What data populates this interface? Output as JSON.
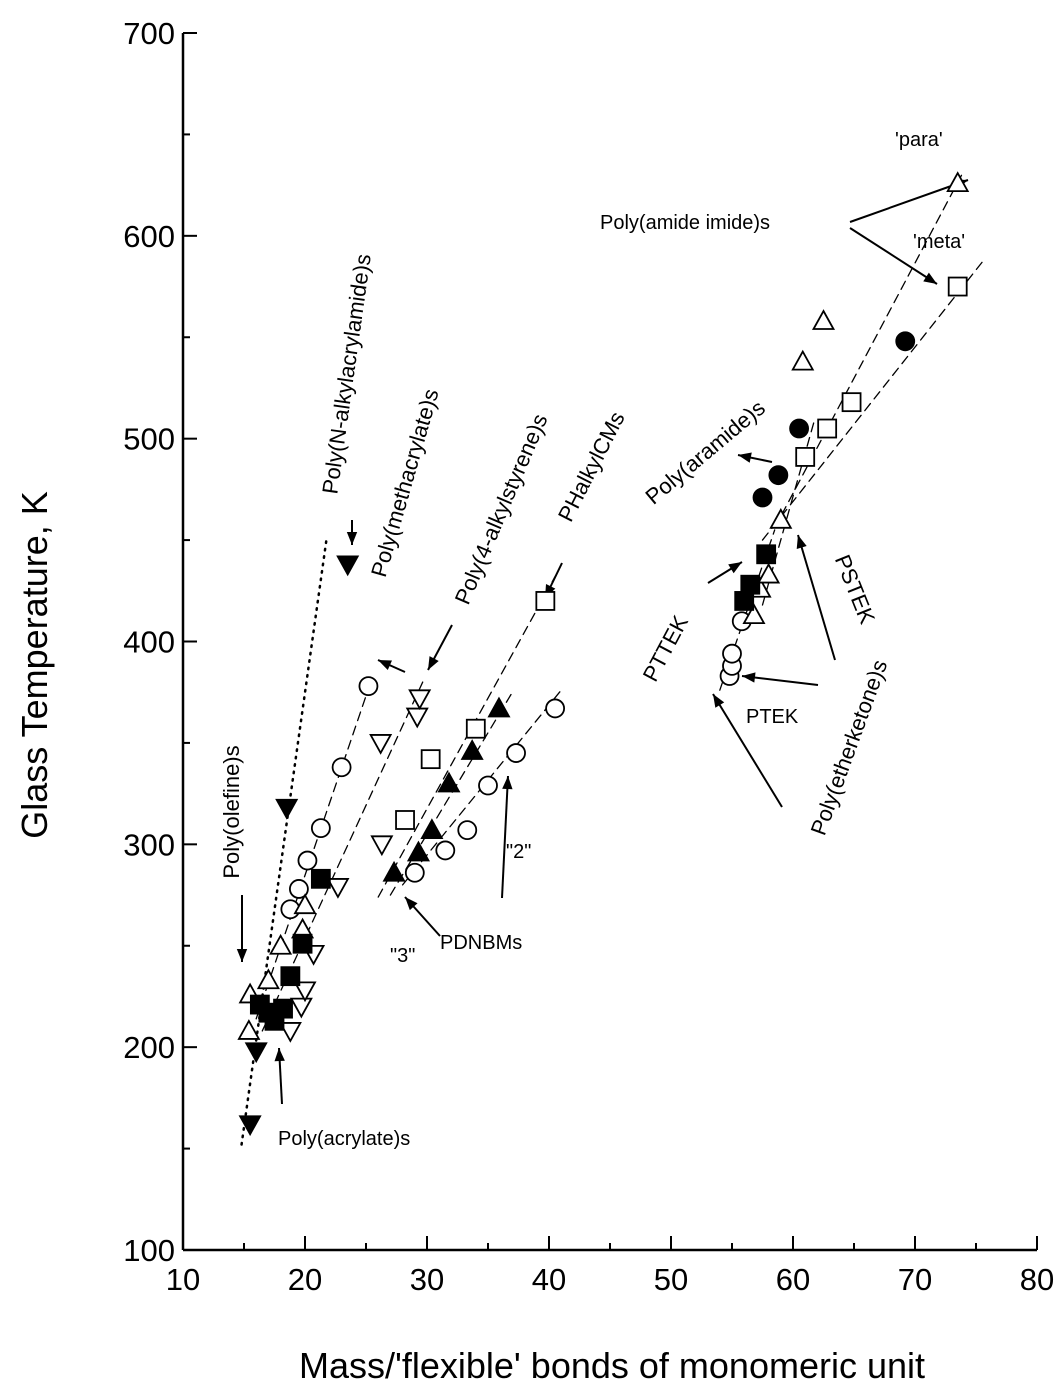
{
  "chart_data": {
    "type": "scatter",
    "title": "",
    "xlabel": "Mass/'flexible' bonds of monomeric unit",
    "ylabel": "Glass Temperature, K",
    "xlim": [
      10,
      80
    ],
    "ylim": [
      100,
      700
    ],
    "xticks": [
      10,
      20,
      30,
      40,
      50,
      60,
      70,
      80
    ],
    "yticks": [
      100,
      200,
      300,
      400,
      500,
      600,
      700
    ],
    "xtick_labels": [
      "10",
      "20",
      "30",
      "40",
      "50",
      "60",
      "70",
      "80"
    ],
    "ytick_labels": [
      "100",
      "200",
      "300",
      "400",
      "500",
      "600",
      "700"
    ],
    "grid": false,
    "legend": "none",
    "series": [
      {
        "marker": "filled-down-triangle",
        "points": [
          [
            15.5,
            162
          ],
          [
            16.0,
            198
          ],
          [
            18.5,
            318
          ],
          [
            23.5,
            438
          ]
        ]
      },
      {
        "marker": "open-circle",
        "points": [
          [
            18.8,
            268
          ],
          [
            19.5,
            278
          ],
          [
            20.2,
            292
          ],
          [
            21.3,
            308
          ],
          [
            23.0,
            338
          ],
          [
            25.2,
            378
          ],
          [
            29.0,
            286
          ],
          [
            31.5,
            297
          ],
          [
            33.3,
            307
          ],
          [
            35.0,
            329
          ],
          [
            37.3,
            345
          ],
          [
            40.5,
            367
          ],
          [
            54.8,
            383
          ],
          [
            55.0,
            388
          ],
          [
            55.0,
            394
          ],
          [
            55.8,
            410
          ]
        ]
      },
      {
        "marker": "open-down-triangle",
        "points": [
          [
            18.8,
            208
          ],
          [
            19.7,
            220
          ],
          [
            20.0,
            228
          ],
          [
            20.7,
            246
          ],
          [
            22.7,
            279
          ],
          [
            26.2,
            350
          ],
          [
            26.3,
            300
          ],
          [
            29.2,
            363
          ],
          [
            29.4,
            372
          ]
        ]
      },
      {
        "marker": "open-up-triangle",
        "points": [
          [
            15.4,
            208
          ],
          [
            15.5,
            226
          ],
          [
            17.0,
            233
          ],
          [
            18.0,
            250
          ],
          [
            19.8,
            258
          ],
          [
            20.0,
            270
          ],
          [
            56.8,
            413
          ],
          [
            57.3,
            426
          ],
          [
            58.0,
            433
          ],
          [
            59.0,
            460
          ],
          [
            60.8,
            538
          ],
          [
            62.5,
            558
          ],
          [
            73.5,
            626
          ]
        ]
      },
      {
        "marker": "filled-square",
        "points": [
          [
            16.3,
            221
          ],
          [
            17.0,
            217
          ],
          [
            17.5,
            213
          ],
          [
            18.2,
            219
          ],
          [
            18.8,
            235
          ],
          [
            19.8,
            251
          ],
          [
            21.3,
            283
          ],
          [
            56.0,
            420
          ],
          [
            56.5,
            428
          ],
          [
            57.8,
            443
          ]
        ]
      },
      {
        "marker": "open-square",
        "points": [
          [
            28.2,
            312
          ],
          [
            30.3,
            342
          ],
          [
            34.0,
            357
          ],
          [
            39.7,
            420
          ],
          [
            61.0,
            491
          ],
          [
            62.8,
            505
          ],
          [
            64.8,
            518
          ],
          [
            73.5,
            575
          ]
        ]
      },
      {
        "marker": "filled-up-triangle",
        "points": [
          [
            27.3,
            286
          ],
          [
            29.3,
            296
          ],
          [
            30.4,
            307
          ],
          [
            31.8,
            330
          ],
          [
            33.7,
            346
          ],
          [
            35.9,
            367
          ]
        ]
      },
      {
        "marker": "filled-circle",
        "points": [
          [
            57.5,
            471
          ],
          [
            58.8,
            482
          ],
          [
            60.5,
            505
          ],
          [
            69.2,
            548
          ]
        ]
      }
    ],
    "annotations": [
      "Poly(N-alkylacrylamide)s",
      "Poly(methacrylate)s",
      "Poly(4-alkylstyrene)s",
      "PHalkylCMs",
      "Poly(olefine)s",
      "Poly(acrylate)s",
      "\"3\"",
      "PDNBMs",
      "\"2\"",
      "'para'",
      "'meta'",
      "Poly(amide imide)s",
      "Poly(aramide)s",
      "PSTEK",
      "PTTEK",
      "PTEK",
      "Poly(etherketone)s"
    ]
  }
}
